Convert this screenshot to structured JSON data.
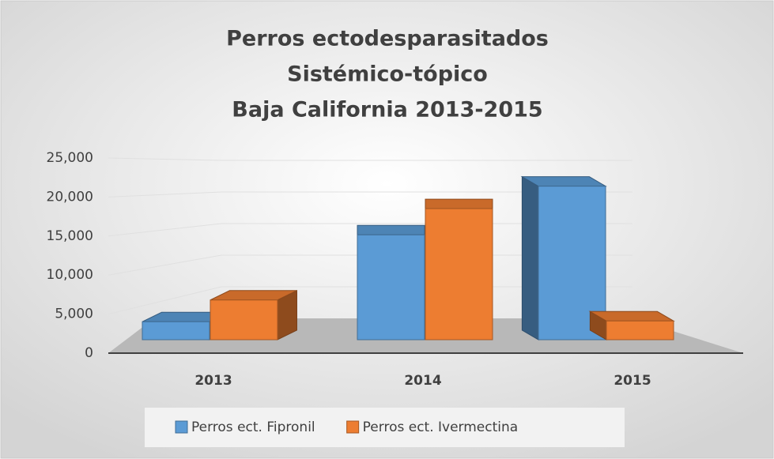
{
  "chart_data": {
    "type": "bar3d",
    "title": [
      "Perros ectodesparasitados",
      "Sistémico-tópico",
      "Baja California 2013-2015"
    ],
    "categories": [
      "2013",
      "2014",
      "2015"
    ],
    "series": [
      {
        "name": "Perros ect. Fipronil",
        "color": "#5b9bd5",
        "values": [
          2400,
          14000,
          20500
        ]
      },
      {
        "name": "Perros ect. Ivermectina",
        "color": "#ed7d31",
        "values": [
          5300,
          17500,
          2500
        ]
      }
    ],
    "ylim": [
      0,
      25000
    ],
    "yticks": [
      0,
      {
        "value": 5000,
        "label": "5,000"
      },
      {
        "value": 10000,
        "label": "10,000"
      },
      {
        "value": 15000,
        "label": "15,000"
      },
      {
        "value": 20000,
        "label": "20,000"
      },
      {
        "value": 25000,
        "label": "25,000"
      }
    ],
    "grid": true,
    "legend": "bottom"
  }
}
